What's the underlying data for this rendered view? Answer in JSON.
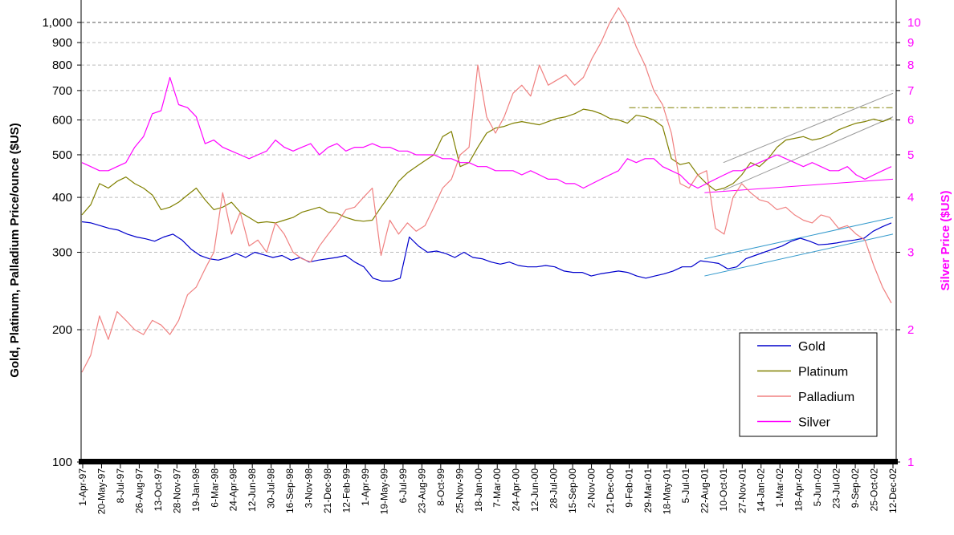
{
  "chart_data": {
    "type": "line",
    "title": "",
    "ylabel": "Gold, Platinum, Palladium Price/ounce ($US)",
    "y2label": "Silver Price ($US)",
    "y_scale": "log",
    "ylim": [
      100,
      1100
    ],
    "y2lim": [
      1,
      11
    ],
    "grid": "horizontal dashed",
    "legend_position": "bottom-right",
    "left_ticks": [
      "100",
      "200",
      "300",
      "400",
      "500",
      "600",
      "700",
      "800",
      "900",
      "1,000"
    ],
    "right_ticks": [
      "1",
      "2",
      "3",
      "4",
      "5",
      "6",
      "7",
      "8",
      "9",
      "10"
    ],
    "x_labels": [
      "1-Apr-97",
      "20-May-97",
      "8-Jul-97",
      "26-Aug-97",
      "13-Oct-97",
      "28-Nov-97",
      "19-Jan-98",
      "6-Mar-98",
      "24-Apr-98",
      "12-Jun-98",
      "30-Jul-98",
      "16-Sep-98",
      "3-Nov-98",
      "21-Dec-98",
      "12-Feb-99",
      "1-Apr-99",
      "19-May-99",
      "6-Jul-99",
      "23-Aug-99",
      "8-Oct-99",
      "25-Nov-99",
      "18-Jan-00",
      "7-Mar-00",
      "24-Apr-00",
      "12-Jun-00",
      "28-Jul-00",
      "15-Sep-00",
      "2-Nov-00",
      "21-Dec-00",
      "9-Feb-01",
      "29-Mar-01",
      "18-May-01",
      "5-Jul-01",
      "22-Aug-01",
      "10-Oct-01",
      "27-Nov-01",
      "14-Jan-02",
      "1-Mar-02",
      "18-Apr-02",
      "5-Jun-02",
      "23-Jul-02",
      "9-Sep-02",
      "25-Oct-02",
      "12-Dec-02"
    ],
    "series": [
      {
        "name": "Gold",
        "axis": "left",
        "color": "#0000cc",
        "values": [
          352,
          350,
          345,
          340,
          337,
          330,
          325,
          322,
          318,
          325,
          330,
          320,
          305,
          295,
          290,
          288,
          292,
          298,
          292,
          300,
          296,
          292,
          295,
          288,
          292,
          285,
          288,
          290,
          292,
          295,
          285,
          278,
          262,
          258,
          258,
          262,
          325,
          310,
          300,
          302,
          298,
          292,
          300,
          292,
          290,
          285,
          282,
          285,
          280,
          278,
          278,
          280,
          278,
          272,
          270,
          270,
          265,
          268,
          270,
          272,
          270,
          265,
          262,
          265,
          268,
          272,
          278,
          278,
          287,
          285,
          283,
          275,
          278,
          290,
          295,
          300,
          305,
          310,
          318,
          323,
          318,
          312,
          313,
          315,
          318,
          320,
          323,
          335,
          343,
          350
        ]
      },
      {
        "name": "Platinum",
        "axis": "left",
        "color": "#808000",
        "values": [
          365,
          385,
          430,
          420,
          435,
          445,
          430,
          420,
          405,
          375,
          380,
          390,
          405,
          420,
          395,
          375,
          380,
          390,
          370,
          360,
          350,
          352,
          350,
          355,
          360,
          370,
          375,
          380,
          370,
          368,
          360,
          355,
          353,
          355,
          380,
          405,
          435,
          455,
          470,
          485,
          500,
          550,
          565,
          470,
          480,
          520,
          560,
          575,
          580,
          590,
          595,
          590,
          585,
          595,
          605,
          610,
          620,
          635,
          630,
          620,
          605,
          600,
          590,
          615,
          610,
          600,
          580,
          490,
          475,
          480,
          450,
          430,
          415,
          420,
          430,
          450,
          480,
          470,
          490,
          520,
          540,
          545,
          550,
          540,
          545,
          555,
          570,
          580,
          590,
          595,
          603,
          595,
          605
        ]
      },
      {
        "name": "Palladium",
        "axis": "left",
        "color": "#f08080",
        "values": [
          160,
          175,
          215,
          190,
          220,
          210,
          200,
          195,
          210,
          205,
          195,
          210,
          240,
          250,
          275,
          300,
          410,
          330,
          370,
          310,
          320,
          300,
          350,
          330,
          300,
          290,
          285,
          310,
          330,
          350,
          375,
          380,
          400,
          420,
          295,
          355,
          330,
          350,
          335,
          345,
          380,
          420,
          440,
          500,
          520,
          800,
          610,
          560,
          610,
          690,
          720,
          680,
          800,
          720,
          740,
          760,
          720,
          750,
          830,
          900,
          1000,
          1080,
          1000,
          880,
          800,
          700,
          650,
          560,
          430,
          420,
          450,
          460,
          340,
          330,
          400,
          430,
          410,
          395,
          390,
          375,
          380,
          365,
          355,
          350,
          365,
          360,
          340,
          345,
          330,
          320,
          280,
          250,
          230
        ]
      },
      {
        "name": "Silver",
        "axis": "right",
        "color": "#ff00ff",
        "values": [
          4.8,
          4.7,
          4.6,
          4.6,
          4.7,
          4.8,
          5.2,
          5.5,
          6.2,
          6.3,
          7.5,
          6.5,
          6.4,
          6.1,
          5.3,
          5.4,
          5.2,
          5.1,
          5.0,
          4.9,
          5.0,
          5.1,
          5.4,
          5.2,
          5.1,
          5.2,
          5.3,
          5.0,
          5.2,
          5.3,
          5.1,
          5.2,
          5.2,
          5.3,
          5.2,
          5.2,
          5.1,
          5.1,
          5.0,
          5.0,
          5.0,
          4.9,
          4.9,
          4.8,
          4.8,
          4.7,
          4.7,
          4.6,
          4.6,
          4.6,
          4.5,
          4.6,
          4.5,
          4.4,
          4.4,
          4.3,
          4.3,
          4.2,
          4.3,
          4.4,
          4.5,
          4.6,
          4.9,
          4.8,
          4.9,
          4.9,
          4.7,
          4.6,
          4.5,
          4.3,
          4.2,
          4.3,
          4.4,
          4.5,
          4.6,
          4.6,
          4.7,
          4.8,
          4.9,
          5.0,
          4.9,
          4.8,
          4.7,
          4.8,
          4.7,
          4.6,
          4.6,
          4.7,
          4.5,
          4.4,
          4.5,
          4.6,
          4.7
        ]
      }
    ],
    "annotations": [
      {
        "kind": "horizontal dash-dot line",
        "color": "#808000",
        "value": 640,
        "axis": "left",
        "x_from": "9-Feb-01",
        "x_to": "12-Dec-02"
      },
      {
        "kind": "channel upper",
        "color": "#999999",
        "axis": "left",
        "y_from": 480,
        "y_to": 690,
        "x_from": "10-Oct-01",
        "x_to": "12-Dec-02"
      },
      {
        "kind": "channel lower",
        "color": "#999999",
        "axis": "left",
        "y_from": 415,
        "y_to": 610,
        "x_from": "10-Oct-01",
        "x_to": "12-Dec-02"
      },
      {
        "kind": "gold channel upper",
        "color": "#3399cc",
        "axis": "left",
        "y_from": 290,
        "y_to": 360,
        "x_from": "22-Aug-01",
        "x_to": "12-Dec-02"
      },
      {
        "kind": "gold channel lower",
        "color": "#3399cc",
        "axis": "left",
        "y_from": 265,
        "y_to": 330,
        "x_from": "22-Aug-01",
        "x_to": "12-Dec-02"
      },
      {
        "kind": "silver trend",
        "color": "#ff00ff",
        "axis": "right",
        "y_from": 4.1,
        "y_to": 4.4,
        "x_from": "22-Aug-01",
        "x_to": "12-Dec-02"
      }
    ]
  }
}
